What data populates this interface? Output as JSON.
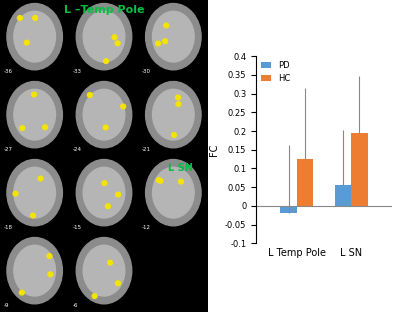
{
  "chart_data": {
    "type": "bar",
    "ylabel": "FC",
    "categories": [
      "L Temp Pole",
      "L SN"
    ],
    "series": [
      {
        "name": "PD",
        "color": "#5b9bd5",
        "values": [
          -0.02,
          0.055
        ],
        "errors": [
          0.182,
          0.147
        ]
      },
      {
        "name": "HC",
        "color": "#ed7d31",
        "values": [
          0.125,
          0.195
        ],
        "errors": [
          0.19,
          0.153
        ]
      }
    ],
    "ylim": [
      -0.1,
      0.4
    ],
    "yticks": [
      -0.1,
      -0.05,
      0,
      0.05,
      0.1,
      0.15,
      0.2,
      0.25,
      0.3,
      0.35,
      0.4
    ],
    "legend": "upper left"
  },
  "image_panel": {
    "annotations": [
      "L –Temp Pole",
      "L SN"
    ],
    "slice_labels": [
      -36,
      -33,
      -30,
      -27,
      -24,
      -21,
      -18,
      -15,
      -12,
      -9,
      -6
    ]
  }
}
